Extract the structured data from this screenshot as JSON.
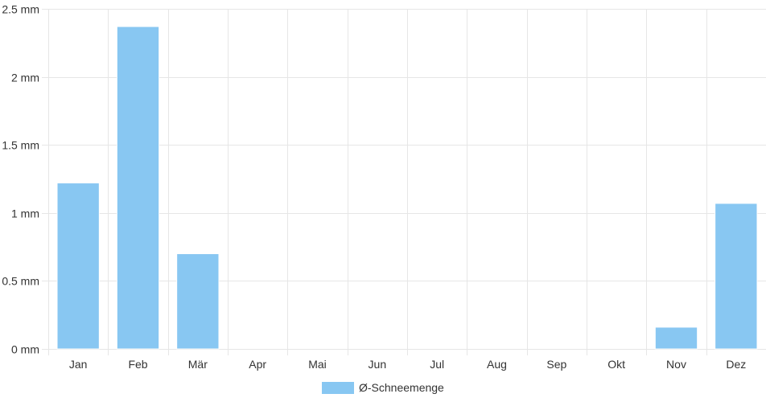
{
  "chart_data": {
    "type": "bar",
    "categories": [
      "Jan",
      "Feb",
      "Mär",
      "Apr",
      "Mai",
      "Jun",
      "Jul",
      "Aug",
      "Sep",
      "Okt",
      "Nov",
      "Dez"
    ],
    "series": [
      {
        "name": "Ø-Schneemenge",
        "color": "#88c7f2",
        "values": [
          1.22,
          2.37,
          0.7,
          0,
          0,
          0,
          0,
          0,
          0,
          0,
          0.16,
          1.07
        ]
      }
    ],
    "ylim": [
      0,
      2.5
    ],
    "y_ticks": [
      "0 mm",
      "0.5 mm",
      "1 mm",
      "1.5 mm",
      "2 mm",
      "2.5 mm"
    ],
    "grid": true,
    "legend_position": "bottom-center"
  }
}
